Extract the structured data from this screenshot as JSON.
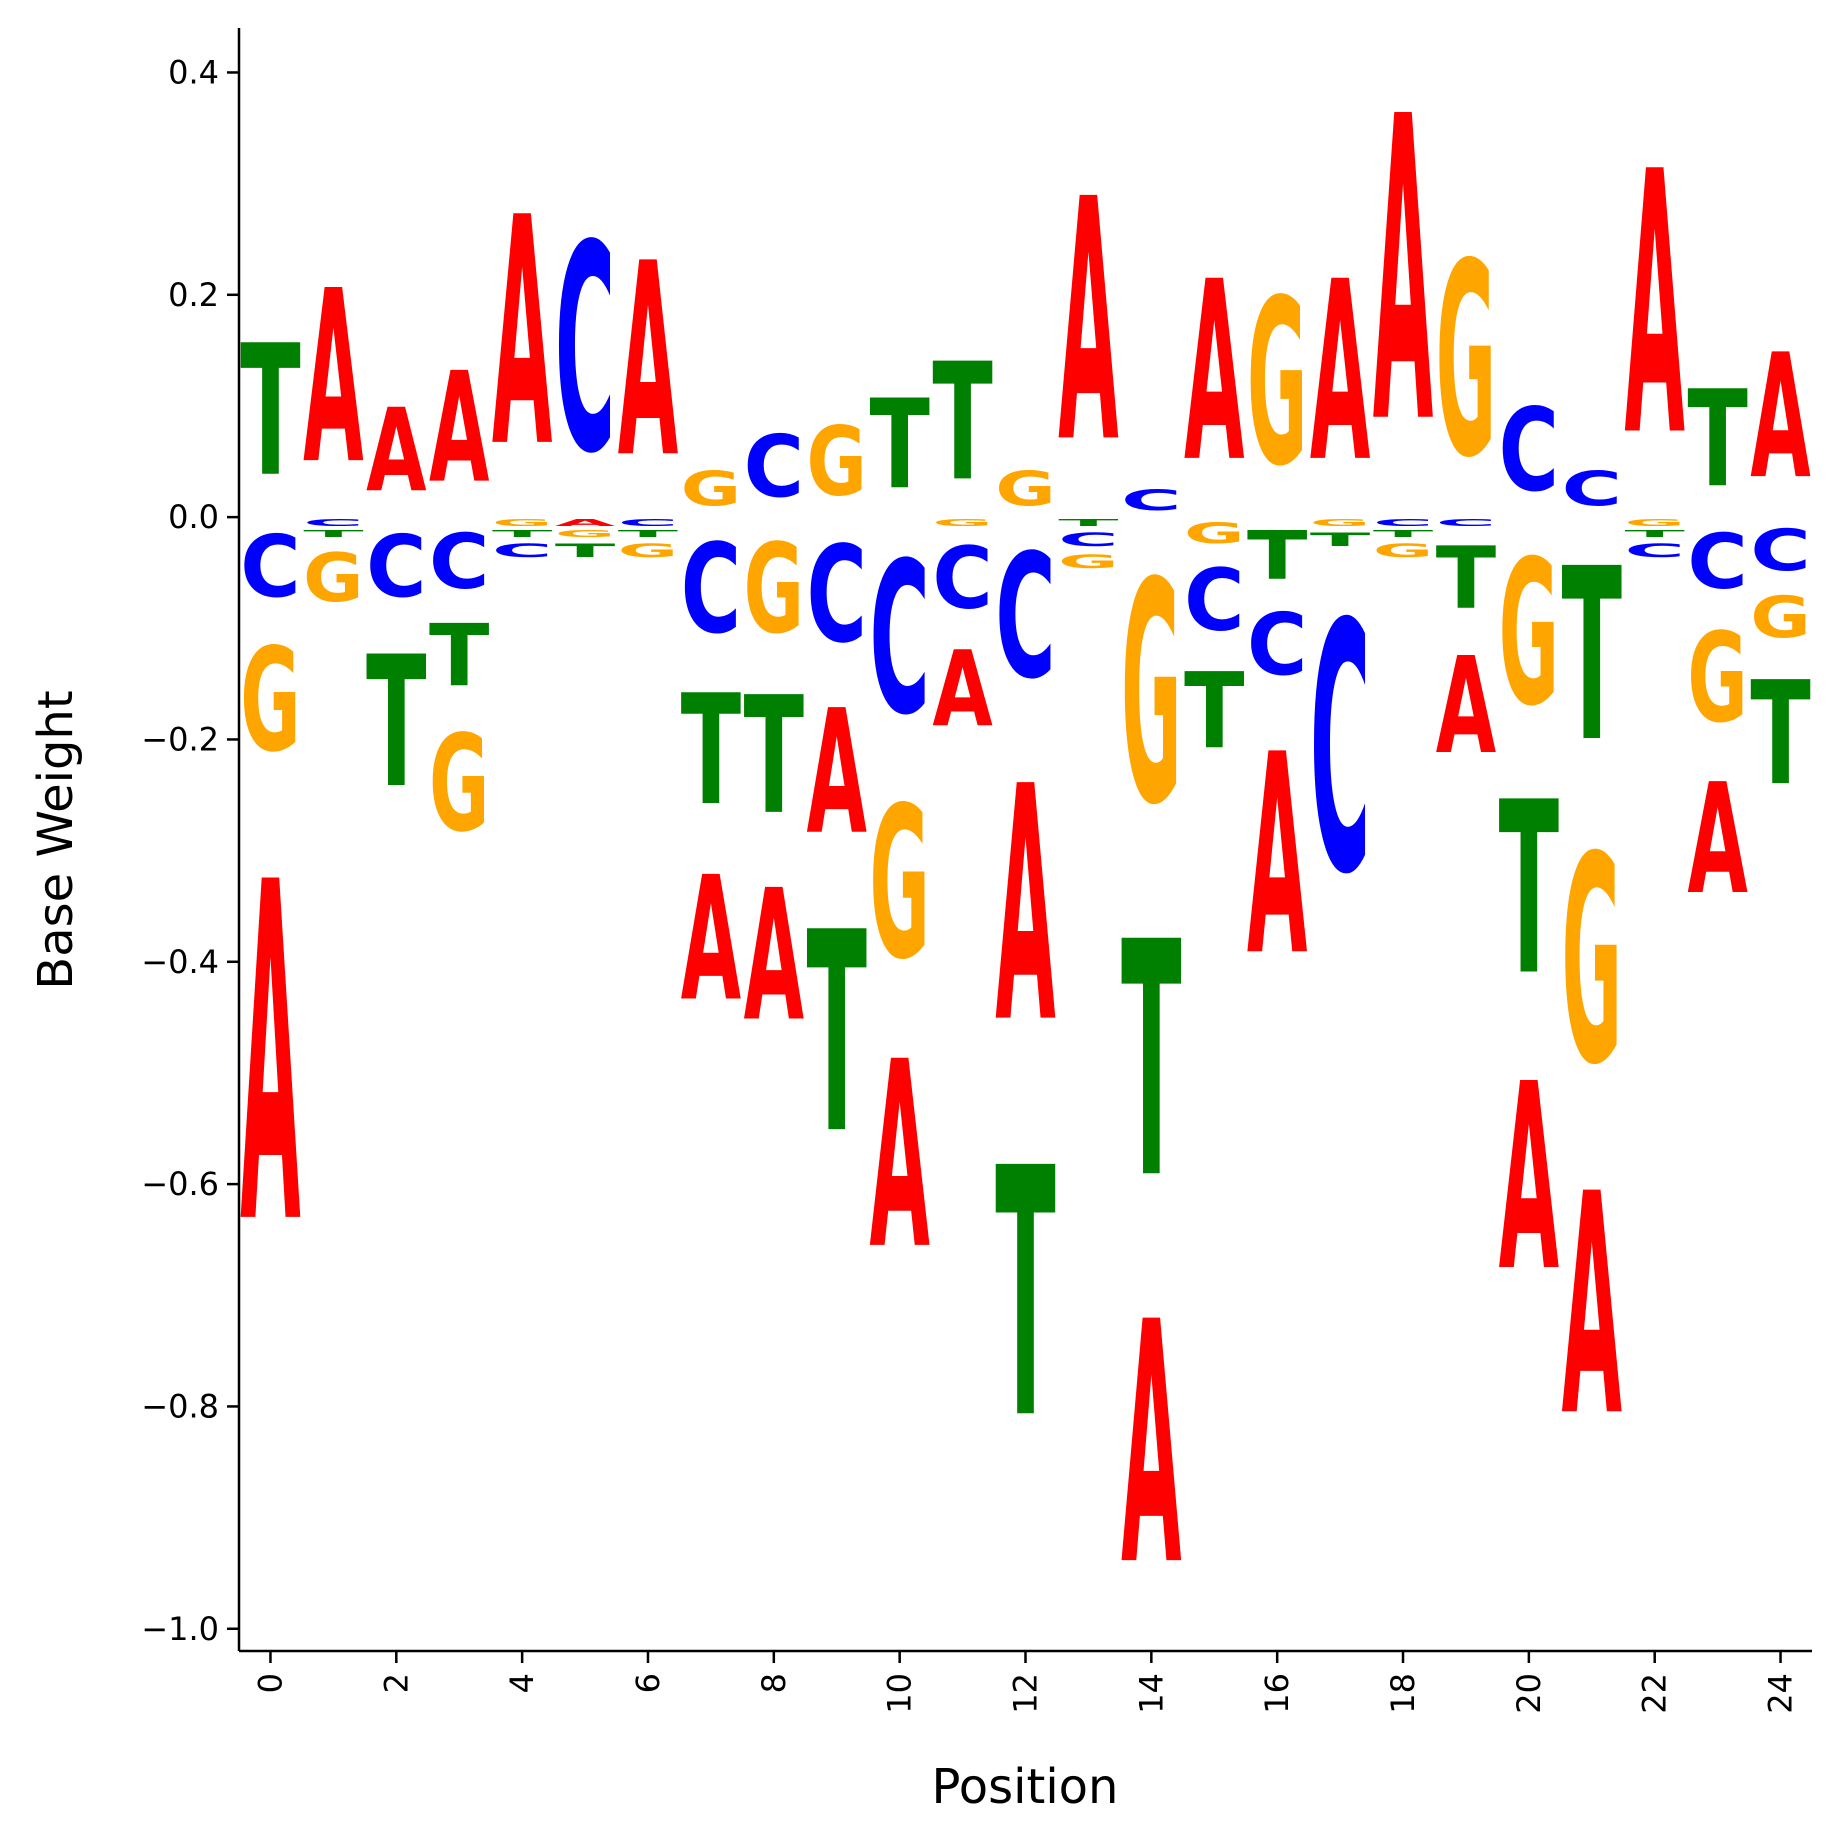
{
  "chart_data": {
    "type": "sequence-logo",
    "xlabel": "Position",
    "ylabel": "Base Weight",
    "ylim": [
      -1.02,
      0.44
    ],
    "xlim": [
      -0.5,
      24.5
    ],
    "yticks": [
      "0.4",
      "0.2",
      "0.0",
      "−0.2",
      "−0.4",
      "−0.6",
      "−0.8",
      "−1.0"
    ],
    "xticks": [
      "0",
      "2",
      "4",
      "6",
      "8",
      "10",
      "12",
      "14",
      "16",
      "18",
      "20",
      "22",
      "24"
    ],
    "colors": {
      "A": "#ff0000",
      "C": "#0000ff",
      "G": "#ffa500",
      "T": "#008000"
    },
    "grid": false,
    "legend": "none",
    "positions": [
      {
        "A": -0.49,
        "C": -0.09,
        "G": -0.15,
        "T": 0.19
      },
      {
        "A": 0.25,
        "C": -0.01,
        "G": -0.07,
        "T": -0.01
      },
      {
        "A": 0.12,
        "C": -0.09,
        "G": 0.0,
        "T": -0.19
      },
      {
        "A": 0.16,
        "C": -0.08,
        "G": -0.14,
        "T": -0.09
      },
      {
        "A": 0.33,
        "C": -0.02,
        "G": -0.01,
        "T": -0.01
      },
      {
        "A": -0.01,
        "C": 0.3,
        "G": -0.01,
        "T": -0.02
      },
      {
        "A": 0.28,
        "C": -0.01,
        "G": -0.02,
        "T": -0.01
      },
      {
        "A": -0.18,
        "C": -0.13,
        "G": 0.05,
        "T": -0.16
      },
      {
        "A": -0.19,
        "C": 0.09,
        "G": -0.13,
        "T": -0.17
      },
      {
        "A": -0.18,
        "C": -0.14,
        "G": 0.1,
        "T": -0.29
      },
      {
        "A": -0.27,
        "C": -0.22,
        "G": -0.22,
        "T": 0.13
      },
      {
        "A": -0.11,
        "C": -0.09,
        "G": -0.01,
        "T": 0.17
      },
      {
        "A": -0.34,
        "C": -0.18,
        "G": 0.05,
        "T": -0.36
      },
      {
        "A": 0.35,
        "C": -0.02,
        "G": -0.02,
        "T": -0.01
      },
      {
        "A": -0.35,
        "C": 0.03,
        "G": -0.32,
        "T": -0.34
      },
      {
        "A": 0.26,
        "C": -0.09,
        "G": -0.03,
        "T": -0.11
      },
      {
        "A": -0.29,
        "C": -0.09,
        "G": 0.24,
        "T": -0.07
      },
      {
        "A": 0.26,
        "C": -0.36,
        "G": -0.01,
        "T": -0.02
      },
      {
        "A": 0.44,
        "C": -0.01,
        "G": -0.02,
        "T": -0.01
      },
      {
        "A": -0.14,
        "C": -0.01,
        "G": 0.28,
        "T": -0.09
      },
      {
        "A": -0.27,
        "C": 0.12,
        "G": -0.21,
        "T": -0.25
      },
      {
        "A": -0.32,
        "C": 0.05,
        "G": -0.3,
        "T": -0.25
      },
      {
        "A": 0.38,
        "C": -0.02,
        "G": -0.01,
        "T": -0.01
      },
      {
        "A": -0.16,
        "C": -0.08,
        "G": -0.13,
        "T": 0.14
      },
      {
        "A": 0.18,
        "C": -0.06,
        "G": -0.06,
        "T": -0.15
      }
    ]
  }
}
